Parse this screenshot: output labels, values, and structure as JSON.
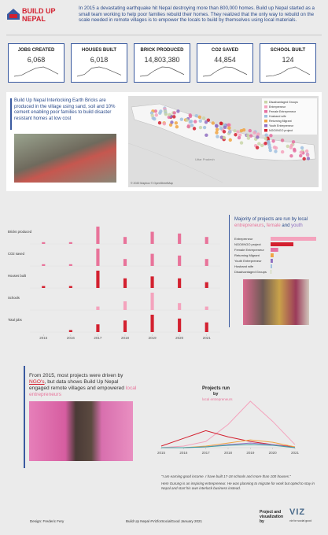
{
  "header": {
    "logo": "BUILD UP NEPAL",
    "intro": "In 2015 a devastating earthquake hit Nepal destroying more than 800,000 homes. Build up Nepal started as a small team working to help poor families rebuild their homes. They realized that the only way to rebuild on the scale needed in remote villages is to empower the locals to build by themselves using local materials."
  },
  "kpis": [
    {
      "label": "JOBS CREATED",
      "value": "6,068",
      "trend": [
        0,
        4,
        18,
        30,
        34,
        22,
        8
      ]
    },
    {
      "label": "HOUSES BUILT",
      "value": "6,018",
      "trend": [
        0,
        6,
        26,
        30,
        24,
        14,
        4
      ]
    },
    {
      "label": "BRICK PRODUCED",
      "value": "14,803,380",
      "trend": [
        0,
        3,
        20,
        32,
        30,
        18,
        6
      ]
    },
    {
      "label": "CO2 SAVED",
      "value": "44,854",
      "trend": [
        0,
        3,
        20,
        32,
        30,
        18,
        6
      ]
    },
    {
      "label": "SCHOOL BUILT",
      "value": "124",
      "trend": [
        0,
        2,
        10,
        26,
        34,
        20,
        6
      ]
    }
  ],
  "bricks": {
    "text": "Build Up Nepal Interlocking Earth Bricks are produced in the village using sand, soil and 10% cement enabling poor families to build disaster resistant homes at low cost"
  },
  "map": {
    "credit": "© 2020 Mapbox © OpenStreetMap",
    "place": "Uttar Pradesh",
    "legend": [
      {
        "name": "Disadvantaged Groups",
        "color": "#c9d6a8"
      },
      {
        "name": "Entrepreneur",
        "color": "#f4a3bd"
      },
      {
        "name": "Female Entrepreneur",
        "color": "#e56fa0"
      },
      {
        "name": "Husband wife",
        "color": "#9fbfdf"
      },
      {
        "name": "Returning Migrant",
        "color": "#f0a443"
      },
      {
        "name": "Youth Entrepreneur",
        "color": "#8f6fc1"
      },
      {
        "name": "NGO/INGO project",
        "color": "#d3202f"
      }
    ]
  },
  "roles": {
    "lead": "Majority of projects are run by local",
    "a": "entrepreneurs",
    "sep1": ",",
    "b": "female",
    "sep2": "and",
    "c": "youth"
  },
  "story": {
    "lead": "From 2015, most projects were driven by",
    "ngo": "NGO's",
    "mid": ", but data shows Build Up Nepal engaged remote villages and empowered",
    "local": "local entrepreneurs"
  },
  "quotes": [
    "\"I am earning good income. I have built 17-18 schools and more than 100 houses.\"",
    "Hem Gurung is an inspiring entrepreneur. He was planning to migrate for work but opted to stay in Nepal and start his own interlock business instead."
  ],
  "footer": {
    "design": "Design: Frederic Fery",
    "center": "Build Up Nepal #VizforSocialGood January 2021",
    "credit": "Project and visualization by",
    "brand": "VIZ",
    "tagline": "viz for social good"
  },
  "chart_data": [
    {
      "type": "line",
      "title": "Projects run",
      "title2": "by",
      "title3": "local entrepreneurs",
      "x": [
        2015,
        2016,
        2017,
        2018,
        2019,
        2020,
        2021
      ],
      "xlim": [
        2015,
        2021
      ],
      "xticks": [
        2015,
        2016,
        2017,
        2018,
        2019,
        2020,
        2021
      ],
      "series": [
        {
          "color": "#f4a3bd",
          "values": [
            0,
            2,
            8,
            30,
            60,
            34,
            4
          ]
        },
        {
          "color": "#d3202f",
          "values": [
            2,
            12,
            22,
            14,
            8,
            4,
            1
          ]
        },
        {
          "color": "#f0a443",
          "values": [
            0,
            0,
            2,
            6,
            10,
            7,
            1
          ]
        },
        {
          "color": "#8f6fc1",
          "values": [
            0,
            0,
            1,
            4,
            6,
            4,
            0
          ]
        },
        {
          "color": "#3fa0a0",
          "values": [
            0,
            0,
            1,
            3,
            4,
            3,
            0
          ]
        }
      ]
    },
    {
      "type": "hbar",
      "categories": [
        "Entrepreneur",
        "NGO/INGO project",
        "Female Entrepreneur",
        "Returning Migrant",
        "Youth Entrepreneur",
        "Husband wife",
        "Disadvantaged Groups"
      ],
      "values": [
        60,
        30,
        10,
        4,
        3,
        2,
        1
      ],
      "colors": [
        "#f4a3bd",
        "#d3202f",
        "#e56fa0",
        "#f0a443",
        "#8f6fc1",
        "#9fbfdf",
        "#c9d6a8"
      ]
    },
    {
      "type": "strip",
      "x": [
        2015,
        2016,
        2017,
        2018,
        2019,
        2020,
        2021
      ],
      "xlim": [
        2014.5,
        2021.5
      ],
      "xticks": [
        2015,
        2016,
        2017,
        2018,
        2019,
        2020,
        2021
      ],
      "series": [
        {
          "name": "Bricks produced",
          "color": "#e8739a",
          "values": [
            1,
            1,
            10,
            4,
            7,
            6,
            4
          ]
        },
        {
          "name": "CO2 saved",
          "color": "#e8739a",
          "values": [
            1,
            1,
            10,
            4,
            7,
            6,
            4
          ]
        },
        {
          "name": "Houses built",
          "color": "#d3202f",
          "values": [
            1,
            1,
            9,
            5,
            6,
            5,
            3
          ]
        },
        {
          "name": "Schools",
          "color": "#f4a3bd",
          "values": [
            0,
            0,
            2,
            5,
            10,
            4,
            2
          ]
        },
        {
          "name": "Total jobs",
          "color": "#d3202f",
          "values": [
            0,
            1,
            4,
            6,
            9,
            7,
            5
          ]
        }
      ]
    }
  ]
}
